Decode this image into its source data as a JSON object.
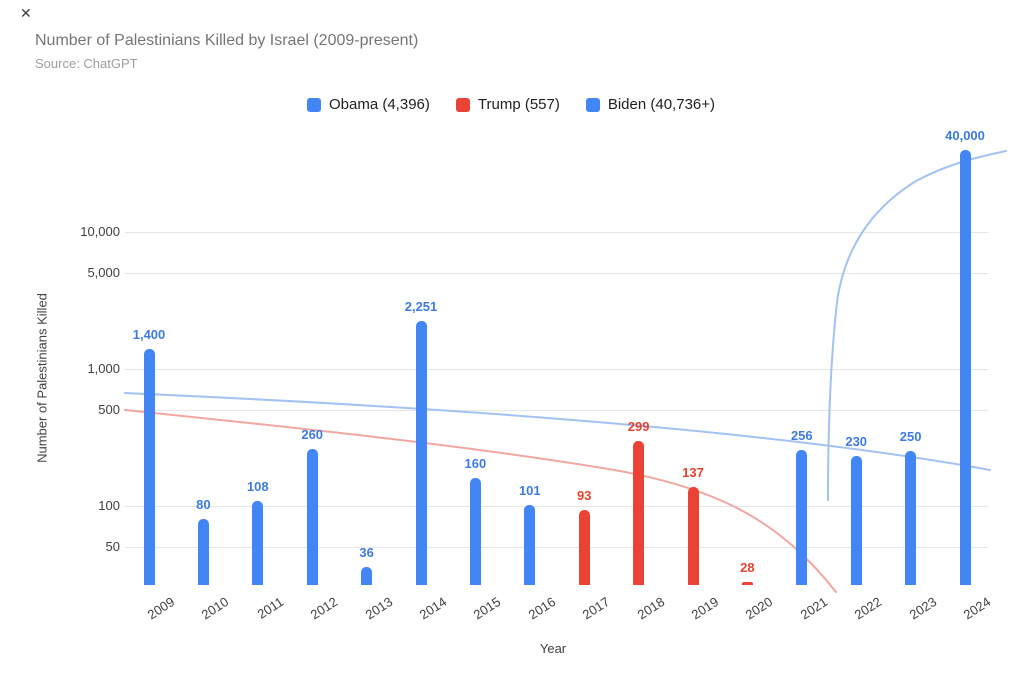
{
  "window": {
    "close_glyph": "✕"
  },
  "header": {
    "title": "Number of Palestinians Killed by Israel (2009-present)",
    "subtitle": "Source: ChatGPT"
  },
  "legend": [
    {
      "name": "obama",
      "label": "Obama (4,396)",
      "color": "#4285F4"
    },
    {
      "name": "trump",
      "label": "Trump (557)",
      "color": "#EA4335"
    },
    {
      "name": "biden",
      "label": "Biden (40,736+)",
      "color": "#4285F4"
    }
  ],
  "chart_data": {
    "type": "bar",
    "title": "Number of Palestinians Killed by Israel (2009-present)",
    "subtitle": "Source: ChatGPT",
    "xlabel": "Year",
    "ylabel": "Number of Palestinians Killed",
    "y_scale": "log",
    "ylim": [
      26.5,
      45000
    ],
    "grid": true,
    "legend_position": "top",
    "y_ticks": [
      {
        "value": 10000,
        "label": "10,000"
      },
      {
        "value": 5000,
        "label": "5,000"
      },
      {
        "value": 1000,
        "label": "1,000"
      },
      {
        "value": 500,
        "label": "500"
      },
      {
        "value": 100,
        "label": "100"
      },
      {
        "value": 50,
        "label": "50"
      }
    ],
    "categories": [
      "2009",
      "2010",
      "2011",
      "2012",
      "2013",
      "2014",
      "2015",
      "2016",
      "2017",
      "2018",
      "2019",
      "2020",
      "2021",
      "2022",
      "2023",
      "2024"
    ],
    "bars": [
      {
        "year": "2009",
        "value": 1400,
        "label": "1,400",
        "series": "obama"
      },
      {
        "year": "2010",
        "value": 80,
        "label": "80",
        "series": "obama"
      },
      {
        "year": "2011",
        "value": 108,
        "label": "108",
        "series": "obama"
      },
      {
        "year": "2012",
        "value": 260,
        "label": "260",
        "series": "obama"
      },
      {
        "year": "2013",
        "value": 36,
        "label": "36",
        "series": "obama"
      },
      {
        "year": "2014",
        "value": 2251,
        "label": "2,251",
        "series": "obama"
      },
      {
        "year": "2015",
        "value": 160,
        "label": "160",
        "series": "obama"
      },
      {
        "year": "2016",
        "value": 101,
        "label": "101",
        "series": "obama"
      },
      {
        "year": "2017",
        "value": 93,
        "label": "93",
        "series": "trump"
      },
      {
        "year": "2018",
        "value": 299,
        "label": "299",
        "series": "trump"
      },
      {
        "year": "2019",
        "value": 137,
        "label": "137",
        "series": "trump"
      },
      {
        "year": "2020",
        "value": 28,
        "label": "28",
        "series": "trump"
      },
      {
        "year": "2021",
        "value": 256,
        "label": "256",
        "series": "biden"
      },
      {
        "year": "2022",
        "value": 230,
        "label": "230",
        "series": "biden"
      },
      {
        "year": "2023",
        "value": 250,
        "label": "250",
        "series": "biden"
      },
      {
        "year": "2024",
        "value": 40000,
        "label": "40,000",
        "series": "biden"
      }
    ],
    "series_totals": {
      "obama": "4,396",
      "trump": "557",
      "biden": "40,736+"
    },
    "colors": {
      "bar": {
        "obama": "#4285F4",
        "trump": "#EA4335",
        "biden": "#4285F4"
      },
      "label": {
        "obama": "#3D7BE0",
        "trump": "#E2432F",
        "biden": "#3D7BE0"
      },
      "trend_blue": "#A3C2F2",
      "trend_red": "#F1A7A1",
      "gridline": "#E6E6E6"
    },
    "trendlines": [
      {
        "name": "obama-trend",
        "series": "obama",
        "color_key": "trend_blue"
      },
      {
        "name": "trump-trend",
        "series": "trump",
        "color_key": "trend_red"
      },
      {
        "name": "biden-trend",
        "series": "biden",
        "color_key": "trend_blue"
      }
    ]
  }
}
